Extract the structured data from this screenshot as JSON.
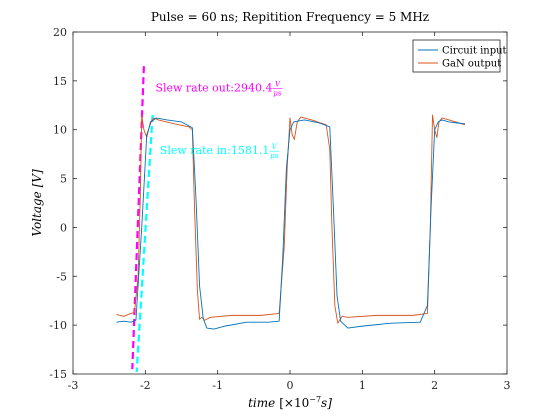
{
  "chart_data": {
    "type": "line",
    "title": "Pulse = 60 ns; Repitition Frequency = 5 MHz",
    "xlabel_main": "time",
    "xlabel_unit": "[×10",
    "xlabel_exp": "−7",
    "xlabel_tail": "s]",
    "ylabel": "Voltage [V]",
    "xlim": [
      -3,
      3
    ],
    "ylim": [
      -15,
      20
    ],
    "xticks": [
      -3,
      -2,
      -1,
      0,
      1,
      2,
      3
    ],
    "yticks": [
      -15,
      -10,
      -5,
      0,
      5,
      10,
      15,
      20
    ],
    "xtick_labels": [
      "-3",
      "-2",
      "-1",
      "0",
      "1",
      "2",
      "3"
    ],
    "ytick_labels": [
      "-15",
      "-10",
      "-5",
      "0",
      "5",
      "10",
      "15",
      "20"
    ],
    "grid": false,
    "legend_position": "top-right",
    "series": [
      {
        "name": "Circuit input",
        "color": "#0072BD",
        "x": [
          -2.4,
          -2.3,
          -2.2,
          -2.13,
          -2.05,
          -1.98,
          -1.92,
          -1.85,
          -1.7,
          -1.5,
          -1.35,
          -1.3,
          -1.25,
          -1.2,
          -1.15,
          -1.05,
          -0.9,
          -0.6,
          -0.3,
          -0.15,
          -0.1,
          -0.05,
          0.0,
          0.05,
          0.2,
          0.4,
          0.55,
          0.6,
          0.65,
          0.7,
          0.8,
          1.0,
          1.4,
          1.8,
          1.9,
          1.95,
          2.0,
          2.05,
          2.1,
          2.2,
          2.3,
          2.42
        ],
        "y": [
          -9.7,
          -9.6,
          -9.7,
          -9.5,
          0.0,
          9.5,
          10.8,
          11.2,
          11.0,
          10.8,
          10.2,
          3.0,
          -6.0,
          -9.3,
          -10.3,
          -10.4,
          -10.1,
          -9.7,
          -9.7,
          -9.6,
          -3.0,
          6.0,
          10.0,
          10.8,
          11.0,
          10.7,
          10.3,
          2.0,
          -7.0,
          -9.6,
          -10.3,
          -10.1,
          -9.8,
          -9.7,
          -8.0,
          2.0,
          10.0,
          10.8,
          11.0,
          10.8,
          10.7,
          10.6
        ]
      },
      {
        "name": "GaN output",
        "color": "#D95319",
        "x": [
          -2.4,
          -2.3,
          -2.2,
          -2.15,
          -2.1,
          -2.07,
          -2.05,
          -2.02,
          -1.98,
          -1.93,
          -1.88,
          -1.82,
          -1.6,
          -1.4,
          -1.35,
          -1.32,
          -1.28,
          -1.25,
          -1.22,
          -1.18,
          -1.1,
          -0.8,
          -0.4,
          -0.15,
          -0.08,
          -0.04,
          0.0,
          0.03,
          0.06,
          0.1,
          0.15,
          0.3,
          0.5,
          0.55,
          0.58,
          0.62,
          0.66,
          0.72,
          0.8,
          1.2,
          1.7,
          1.9,
          1.94,
          1.97,
          2.0,
          2.03,
          2.06,
          2.1,
          2.2,
          2.42
        ],
        "y": [
          -8.9,
          -9.1,
          -8.8,
          -8.7,
          -5.0,
          3.0,
          11.5,
          10.0,
          9.2,
          10.8,
          11.2,
          11.0,
          10.6,
          10.3,
          10.0,
          2.0,
          -6.5,
          -9.4,
          -9.2,
          -9.5,
          -9.2,
          -9.0,
          -9.0,
          -8.8,
          -2.0,
          6.0,
          11.2,
          9.5,
          9.0,
          10.8,
          11.3,
          11.0,
          10.5,
          8.0,
          0.0,
          -8.0,
          -9.8,
          -9.1,
          -9.2,
          -9.0,
          -9.0,
          -8.8,
          0.0,
          11.5,
          10.0,
          9.2,
          10.8,
          11.2,
          11.0,
          10.5
        ]
      }
    ],
    "annotations": [
      {
        "text": "Slew rate out:2940.4",
        "frac_num": "V",
        "frac_den": "μs",
        "color": "#FF00FF",
        "anchor_x": -1.86,
        "anchor_y": 13.9,
        "line_x": [
          -2.02,
          -2.18
        ],
        "line_y": [
          16.5,
          -14.5
        ]
      },
      {
        "text": "Slew rate in:1581.1",
        "frac_num": "V",
        "frac_den": "μs",
        "color": "#00FFFF",
        "anchor_x": -1.8,
        "anchor_y": 7.5,
        "line_x": [
          -1.9,
          -2.12
        ],
        "line_y": [
          11.5,
          -14.8
        ]
      }
    ]
  }
}
